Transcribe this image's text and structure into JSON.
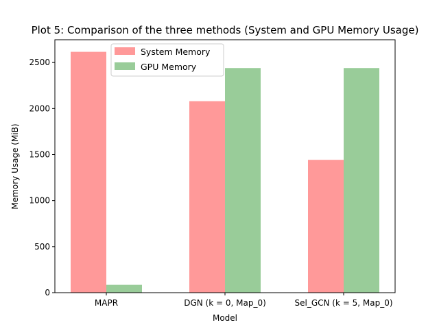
{
  "chart_data": {
    "type": "bar",
    "title": "Plot 5: Comparison of the three methods (System and GPU Memory Usage)",
    "xlabel": "Model",
    "ylabel": "Memory Usage (MiB)",
    "categories": [
      "MAPR",
      "DGN (k = 0, Map_0)",
      "Sel_GCN (k = 5, Map_0)"
    ],
    "series": [
      {
        "name": "System Memory",
        "values": [
          2616,
          2080,
          1443
        ],
        "color": "#ff9999"
      },
      {
        "name": "GPU Memory",
        "values": [
          85,
          2440,
          2440
        ],
        "color": "#99cc99"
      }
    ],
    "ylim": [
      0,
      2747
    ],
    "yticks": [
      0,
      500,
      1000,
      1500,
      2000,
      2500
    ],
    "grid": false,
    "legend_position": "top-left"
  }
}
